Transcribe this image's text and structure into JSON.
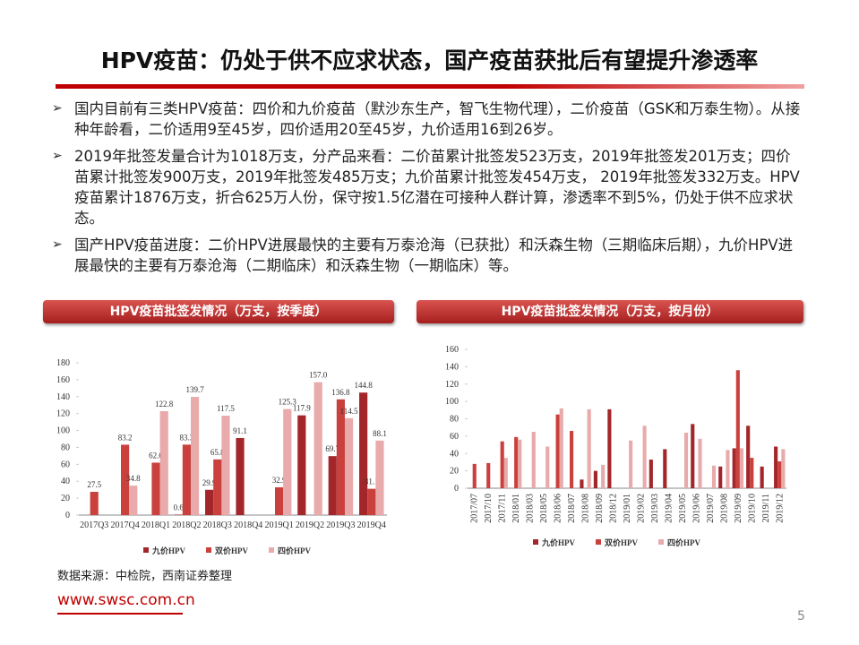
{
  "header": {
    "title": "HPV疫苗：仍处于供不应求状态，国产疫苗获批后有望提升渗透率"
  },
  "bullets": [
    "国内目前有三类HPV疫苗：四价和九价疫苗（默沙东生产，智飞生物代理），二价疫苗（GSK和万泰生物）。从接种年龄看，二价适用9至45岁，四价适用20至45岁，九价适用16到26岁。",
    "2019年批签发量合计为1018万支，分产品来看：二价苗累计批签发523万支，2019年批签发201万支；四价苗累计批签发900万支，2019年批签发485万支；九价苗累计批签发454万支， 2019年批签发332万支。HPV疫苗累计1876万支，折合625万人份，保守按1.5亿潜在可接种人群计算，渗透率不到5%，仍处于供不应求状态。",
    "国产HPV疫苗进度：二价HPV进展最快的主要有万泰沧海（已获批）和沃森生物（三期临床后期），九价HPV进展最快的主要有万泰沧海（二期临床）和沃森生物（一期临床）等。"
  ],
  "chart_data": [
    {
      "type": "bar",
      "title": "HPV疫苗批签发情况（万支，按季度）",
      "categories": [
        "2017Q3",
        "2017Q4",
        "2018Q1",
        "2018Q2",
        "2018Q3",
        "2018Q4",
        "2019Q1",
        "2019Q2",
        "2019Q3",
        "2019Q4"
      ],
      "series": [
        {
          "name": "九价HPV",
          "color": "#a3262a",
          "values": [
            null,
            null,
            null,
            0.6,
            29.9,
            91.1,
            null,
            117.9,
            69.7,
            144.8
          ],
          "value_labels": [
            null,
            null,
            null,
            "0.6",
            "29.9",
            "91.1",
            null,
            "117.9",
            "69.7",
            "144.8"
          ]
        },
        {
          "name": "双价HPV",
          "color": "#c9403c",
          "values": [
            27.5,
            83.2,
            62.0,
            83.3,
            65.8,
            null,
            32.9,
            null,
            136.8,
            31.1
          ],
          "value_labels": [
            "27.5",
            "83.2",
            "62.0",
            "83.3",
            "65.8",
            null,
            "32.9",
            null,
            "136.8",
            "31.1"
          ]
        },
        {
          "name": "四价HPV",
          "color": "#e8aaaa",
          "values": [
            null,
            34.8,
            122.8,
            139.7,
            117.5,
            null,
            125.3,
            157.0,
            114.5,
            88.1
          ],
          "value_labels": [
            null,
            "34.8",
            "122.8",
            "139.7",
            "117.5",
            null,
            "125.3",
            "157.0",
            "114.5",
            "88.1"
          ]
        }
      ],
      "ylim": [
        0,
        180
      ],
      "yticks": [
        0,
        20,
        40,
        60,
        80,
        100,
        120,
        140,
        160,
        180
      ],
      "grid": false,
      "legend": "bottom"
    },
    {
      "type": "bar",
      "title": "HPV疫苗批签发情况（万支，按月份）",
      "categories": [
        "2017/07",
        "2017/10",
        "2017/11",
        "2018/01",
        "2018/03",
        "2018/05",
        "2018/06",
        "2018/07",
        "2018/08",
        "2018/09",
        "2018/12",
        "2019/01",
        "2019/02",
        "2019/03",
        "2019/04",
        "2019/05",
        "2019/06",
        "2019/07",
        "2019/08",
        "2019/09",
        "2019/10",
        "2019/11",
        "2019/12"
      ],
      "series": [
        {
          "name": "九价HPV",
          "color": "#a3262a",
          "values": [
            null,
            null,
            null,
            null,
            null,
            null,
            null,
            null,
            10,
            20,
            91,
            null,
            null,
            33,
            45,
            null,
            74,
            null,
            25,
            46,
            72,
            25,
            48
          ]
        },
        {
          "name": "双价HPV",
          "color": "#c9403c",
          "values": [
            28,
            29,
            54,
            59,
            null,
            null,
            85,
            66,
            null,
            null,
            null,
            null,
            null,
            null,
            null,
            null,
            null,
            null,
            null,
            136,
            35,
            null,
            31
          ]
        },
        {
          "name": "四价HPV",
          "color": "#e8aaaa",
          "values": [
            null,
            null,
            35,
            56,
            65,
            48,
            92,
            null,
            91,
            27,
            null,
            55,
            72,
            null,
            null,
            64,
            57,
            26,
            44,
            46,
            null,
            null,
            45
          ]
        }
      ],
      "ylim": [
        0,
        160
      ],
      "yticks": [
        0,
        20,
        40,
        60,
        80,
        100,
        120,
        140,
        160
      ],
      "grid": false,
      "legend": "bottom"
    }
  ],
  "source": "数据来源：中检院，西南证券整理",
  "website": "www.swsc.com.cn",
  "page_number": "5"
}
